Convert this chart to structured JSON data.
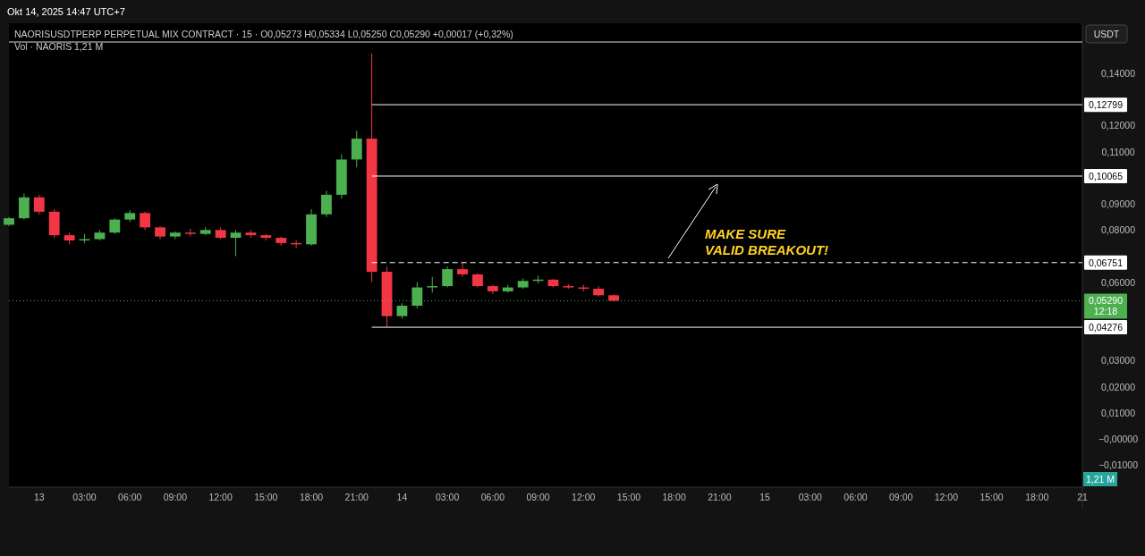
{
  "chart_data": {
    "type": "candlestick",
    "title": "NAORISUSDTPERP PERPETUAL MIX CONTRACT · 15 · O0,05273 H0,05334 L0,05250 C0,05290 +0,00017 (+0,32%)",
    "subtitle": "Okt 14, 2025 14:47 UTC+7",
    "annotations": [
      "Vol · NAORIS 1,21 M",
      "USDT",
      "1,21 M",
      "12:18",
      "MAKE SURE\nVALID BREAKOUT!"
    ],
    "x": [
      "2025-10-12T22:00",
      "2025-10-12T23:00",
      "2025-10-13T00:00",
      "2025-10-13T01:00",
      "2025-10-13T02:00",
      "2025-10-13T03:00",
      "2025-10-13T04:00",
      "2025-10-13T05:00",
      "2025-10-13T06:00",
      "2025-10-13T07:00",
      "2025-10-13T08:00",
      "2025-10-13T09:00",
      "2025-10-13T10:00",
      "2025-10-13T11:00",
      "2025-10-13T12:00",
      "2025-10-13T13:00",
      "2025-10-13T14:00",
      "2025-10-13T15:00",
      "2025-10-13T16:00",
      "2025-10-13T17:00",
      "2025-10-13T18:00",
      "2025-10-13T19:00",
      "2025-10-13T20:00",
      "2025-10-13T21:00",
      "2025-10-13T22:00",
      "2025-10-13T23:00",
      "2025-10-14T00:00",
      "2025-10-14T01:00",
      "2025-10-14T02:00",
      "2025-10-14T03:00",
      "2025-10-14T04:00",
      "2025-10-14T05:00",
      "2025-10-14T06:00",
      "2025-10-14T07:00",
      "2025-10-14T08:00",
      "2025-10-14T09:00",
      "2025-10-14T10:00",
      "2025-10-14T11:00",
      "2025-10-14T12:00",
      "2025-10-14T13:00",
      "2025-10-14T14:00"
    ],
    "ohlc": [
      [
        0.082,
        0.085,
        0.0815,
        0.0845
      ],
      [
        0.0845,
        0.094,
        0.084,
        0.0925
      ],
      [
        0.0925,
        0.0935,
        0.086,
        0.087
      ],
      [
        0.087,
        0.088,
        0.077,
        0.078
      ],
      [
        0.078,
        0.079,
        0.0745,
        0.076
      ],
      [
        0.076,
        0.0785,
        0.075,
        0.0765
      ],
      [
        0.0765,
        0.08,
        0.076,
        0.079
      ],
      [
        0.079,
        0.0845,
        0.0785,
        0.084
      ],
      [
        0.084,
        0.0875,
        0.083,
        0.0865
      ],
      [
        0.0865,
        0.087,
        0.08,
        0.081
      ],
      [
        0.081,
        0.0815,
        0.0765,
        0.0775
      ],
      [
        0.0775,
        0.0795,
        0.0765,
        0.079
      ],
      [
        0.079,
        0.0805,
        0.0775,
        0.0785
      ],
      [
        0.0785,
        0.081,
        0.078,
        0.08
      ],
      [
        0.08,
        0.081,
        0.0765,
        0.077
      ],
      [
        0.077,
        0.08,
        0.07,
        0.079
      ],
      [
        0.079,
        0.08,
        0.077,
        0.078
      ],
      [
        0.078,
        0.0785,
        0.076,
        0.077
      ],
      [
        0.077,
        0.0775,
        0.074,
        0.075
      ],
      [
        0.075,
        0.076,
        0.073,
        0.0745
      ],
      [
        0.0745,
        0.088,
        0.074,
        0.086
      ],
      [
        0.086,
        0.095,
        0.085,
        0.0935
      ],
      [
        0.0935,
        0.109,
        0.092,
        0.107
      ],
      [
        0.107,
        0.118,
        0.104,
        0.115
      ],
      [
        0.115,
        0.1476,
        0.06,
        0.064
      ],
      [
        0.064,
        0.066,
        0.0428,
        0.047
      ],
      [
        0.047,
        0.052,
        0.046,
        0.051
      ],
      [
        0.051,
        0.06,
        0.05,
        0.058
      ],
      [
        0.058,
        0.062,
        0.056,
        0.0585
      ],
      [
        0.0585,
        0.066,
        0.058,
        0.065
      ],
      [
        0.065,
        0.0675,
        0.062,
        0.063
      ],
      [
        0.063,
        0.0635,
        0.058,
        0.0585
      ],
      [
        0.0585,
        0.059,
        0.0555,
        0.0565
      ],
      [
        0.0565,
        0.059,
        0.056,
        0.058
      ],
      [
        0.058,
        0.0615,
        0.0575,
        0.0605
      ],
      [
        0.0605,
        0.0625,
        0.0595,
        0.061
      ],
      [
        0.061,
        0.0612,
        0.058,
        0.0585
      ],
      [
        0.0585,
        0.0592,
        0.0575,
        0.058
      ],
      [
        0.058,
        0.059,
        0.0565,
        0.0575
      ],
      [
        0.0575,
        0.0585,
        0.0545,
        0.055
      ],
      [
        0.055,
        0.0553,
        0.0525,
        0.0529
      ]
    ],
    "colors": [
      "#4caf50",
      "#4caf50",
      "#f23645",
      "#f23645",
      "#f23645",
      "#4caf50",
      "#4caf50",
      "#4caf50",
      "#4caf50",
      "#f23645",
      "#f23645",
      "#4caf50",
      "#f23645",
      "#4caf50",
      "#f23645",
      "#4caf50",
      "#f23645",
      "#f23645",
      "#f23645",
      "#f23645",
      "#4caf50",
      "#4caf50",
      "#4caf50",
      "#4caf50",
      "#f23645",
      "#f23645",
      "#4caf50",
      "#4caf50",
      "#4caf50",
      "#4caf50",
      "#f23645",
      "#f23645",
      "#f23645",
      "#4caf50",
      "#4caf50",
      "#4caf50",
      "#f23645",
      "#f23645",
      "#f23645",
      "#f23645",
      "#f23645"
    ],
    "xlim": [
      "2025-10-12T22:00",
      "2025-10-15T21:00"
    ],
    "xticks": [
      {
        "value": "2025-10-13",
        "label": "13"
      },
      {
        "value": "2025-10-13T03:00",
        "label": "03:00"
      },
      {
        "value": "2025-10-13T06:00",
        "label": "06:00"
      },
      {
        "value": "2025-10-13T09:00",
        "label": "09:00"
      },
      {
        "value": "2025-10-13T12:00",
        "label": "12:00"
      },
      {
        "value": "2025-10-13T15:00",
        "label": "15:00"
      },
      {
        "value": "2025-10-13T18:00",
        "label": "18:00"
      },
      {
        "value": "2025-10-13T21:00",
        "label": "21:00"
      },
      {
        "value": "2025-10-14",
        "label": "14"
      },
      {
        "value": "2025-10-14T03:00",
        "label": "03:00"
      },
      {
        "value": "2025-10-14T06:00",
        "label": "06:00"
      },
      {
        "value": "2025-10-14T09:00",
        "label": "09:00"
      },
      {
        "value": "2025-10-14T12:00",
        "label": "12:00"
      },
      {
        "value": "2025-10-14T15:00",
        "label": "15:00"
      },
      {
        "value": "2025-10-14T18:00",
        "label": "18:00"
      },
      {
        "value": "2025-10-14T21:00",
        "label": "21:00"
      },
      {
        "value": "2025-10-15",
        "label": "15"
      },
      {
        "value": "2025-10-15T03:00",
        "label": "03:00"
      },
      {
        "value": "2025-10-15T06:00",
        "label": "06:00"
      },
      {
        "value": "2025-10-15T09:00",
        "label": "09:00"
      },
      {
        "value": "2025-10-15T12:00",
        "label": "12:00"
      },
      {
        "value": "2025-10-15T15:00",
        "label": "15:00"
      },
      {
        "value": "2025-10-15T18:00",
        "label": "18:00"
      },
      {
        "value": "2025-10-15T21:00",
        "label": "21"
      }
    ],
    "ylim": [
      -0.0185,
      0.152
    ],
    "yticks": [
      {
        "value": 0.14,
        "label": "0,14000"
      },
      {
        "value": 0.12,
        "label": "0,12000"
      },
      {
        "value": 0.11,
        "label": "0,11000"
      },
      {
        "value": 0.09,
        "label": "0,09000"
      },
      {
        "value": 0.08,
        "label": "0,08000"
      },
      {
        "value": 0.06,
        "label": "0,06000"
      },
      {
        "value": 0.03,
        "label": "0,03000"
      },
      {
        "value": 0.02,
        "label": "0,02000"
      },
      {
        "value": 0.01,
        "label": "0,01000"
      },
      {
        "value": 0,
        "label": "−0,00000"
      },
      {
        "value": -0.01,
        "label": "−0,01000"
      }
    ],
    "ref_lines": [
      {
        "axis": "y",
        "value": 0.12799,
        "label": "0,12799",
        "color": "#ffffff",
        "line_style": "solid"
      },
      {
        "axis": "y",
        "value": 0.10065,
        "label": "0,10065",
        "color": "#ffffff",
        "line_style": "solid"
      },
      {
        "axis": "y",
        "value": 0.06751,
        "label": "0,06751",
        "color": "#ffffff",
        "line_style": "dashed"
      },
      {
        "axis": "y",
        "value": 0.0529,
        "label": "0,05290",
        "color": "#4caf50",
        "line_style": "dotted"
      },
      {
        "axis": "y",
        "value": 0.04276,
        "label": "0,04276",
        "color": "#ffffff",
        "line_style": "solid"
      }
    ],
    "grid": false
  }
}
